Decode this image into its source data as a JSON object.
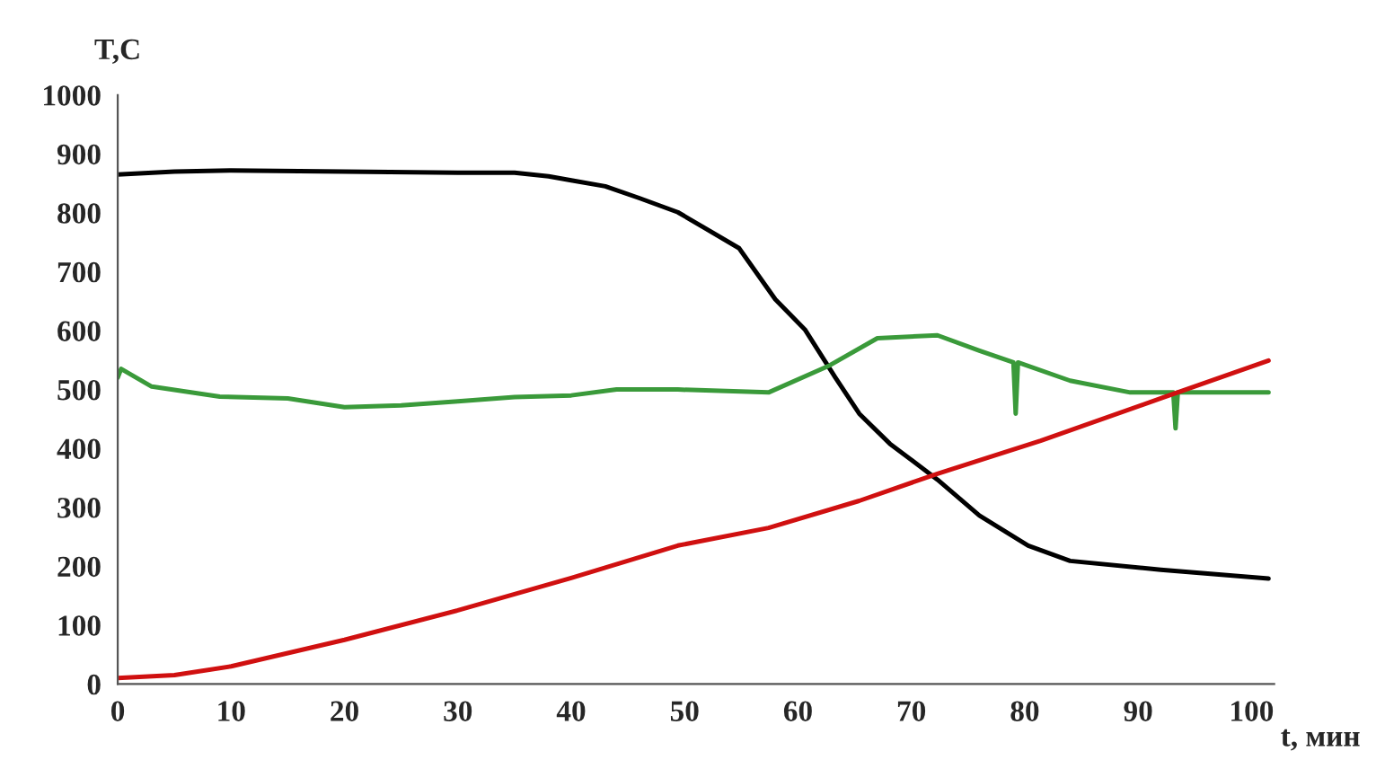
{
  "chart_data": {
    "type": "line",
    "xlabel": "t, мин",
    "ylabel": "T,C",
    "xlim": [
      0,
      102
    ],
    "ylim": [
      0,
      1000
    ],
    "xticks": [
      0,
      10,
      20,
      30,
      40,
      50,
      60,
      70,
      80,
      90,
      100
    ],
    "yticks": [
      0,
      100,
      200,
      300,
      400,
      500,
      600,
      700,
      800,
      900,
      1000
    ],
    "grid": false,
    "legend": false,
    "marker": "none",
    "line_style": "solid",
    "series": [
      {
        "color": "#000000",
        "x": [
          0,
          5,
          10,
          20,
          30,
          35,
          38,
          40,
          43,
          46,
          49.4,
          54.8,
          58,
          60.6,
          63.3,
          65.4,
          68.1,
          72.3,
          76,
          80.3,
          84,
          92,
          101.5
        ],
        "values": [
          865,
          870,
          872,
          870,
          868,
          868,
          862,
          855,
          845,
          825,
          801,
          740,
          653,
          602,
          520,
          459,
          408,
          347,
          286,
          235,
          209,
          194,
          179
        ]
      },
      {
        "color": "#3a9a3a",
        "x": [
          0,
          0.3,
          3,
          9,
          15,
          20,
          25,
          30,
          35,
          40,
          44,
          49.4,
          57.4,
          62.8,
          67,
          72.3,
          76,
          79,
          79.2,
          79.4,
          84,
          89.3,
          93.1,
          93.3,
          93.5,
          101.5
        ],
        "values": [
          520,
          535,
          505,
          488,
          485,
          470,
          473,
          480,
          487,
          490,
          500,
          500,
          495,
          541,
          587,
          592,
          566,
          546,
          459,
          546,
          515,
          495,
          495,
          434,
          495,
          495
        ]
      },
      {
        "color": "#d01010",
        "x": [
          0,
          5,
          10,
          20,
          30,
          40,
          49.4,
          57.4,
          65.4,
          72.3,
          81.4,
          92,
          101.5
        ],
        "values": [
          10,
          15,
          30,
          75,
          125,
          180,
          235,
          265,
          311,
          357,
          413,
          485,
          549
        ]
      }
    ]
  }
}
